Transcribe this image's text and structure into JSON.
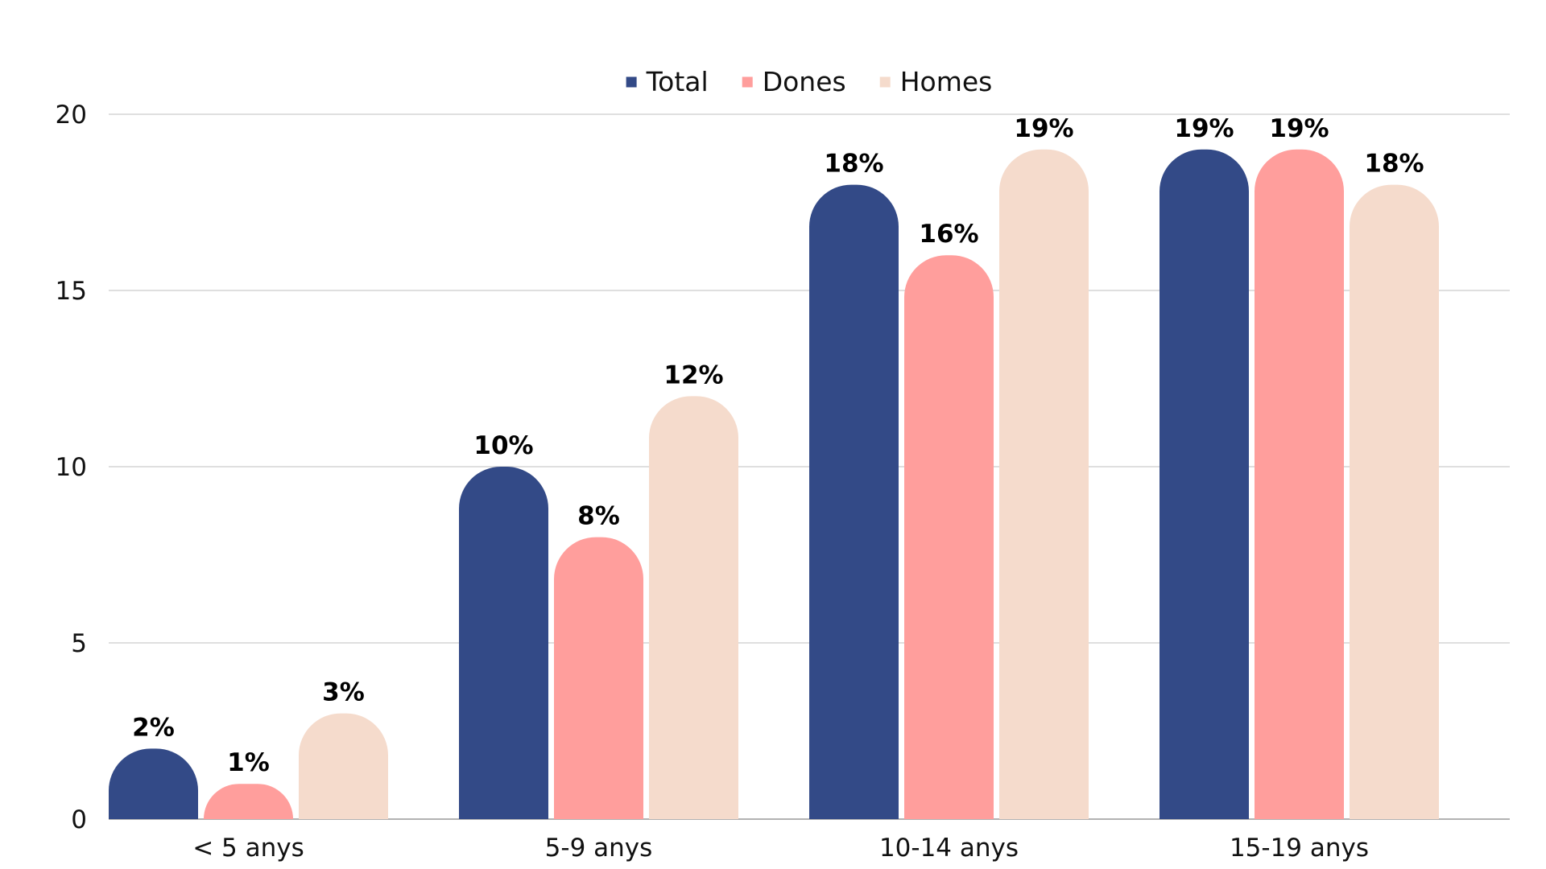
{
  "chart_data": {
    "type": "bar",
    "title": "",
    "xlabel": "",
    "ylabel": "",
    "categories": [
      "< 5 anys",
      "5-9 anys",
      "10-14 anys",
      "15-19 anys"
    ],
    "series": [
      {
        "name": "Total",
        "color": "#334a87",
        "values": [
          2,
          10,
          18,
          19
        ],
        "labels": [
          "2%",
          "10%",
          "18%",
          "19%"
        ]
      },
      {
        "name": "Dones",
        "color": "#ff9e9c",
        "values": [
          1,
          8,
          16,
          19
        ],
        "labels": [
          "1%",
          "8%",
          "16%",
          "19%"
        ]
      },
      {
        "name": "Homes",
        "color": "#f5dbcc",
        "values": [
          3,
          12,
          19,
          18
        ],
        "labels": [
          "3%",
          "12%",
          "19%",
          "18%"
        ]
      }
    ],
    "ylim": [
      0,
      20
    ],
    "yticks": [
      0,
      5,
      10,
      15,
      20
    ],
    "grid": true,
    "gridline_color": "#cccccc",
    "legend_position": "top-center"
  }
}
